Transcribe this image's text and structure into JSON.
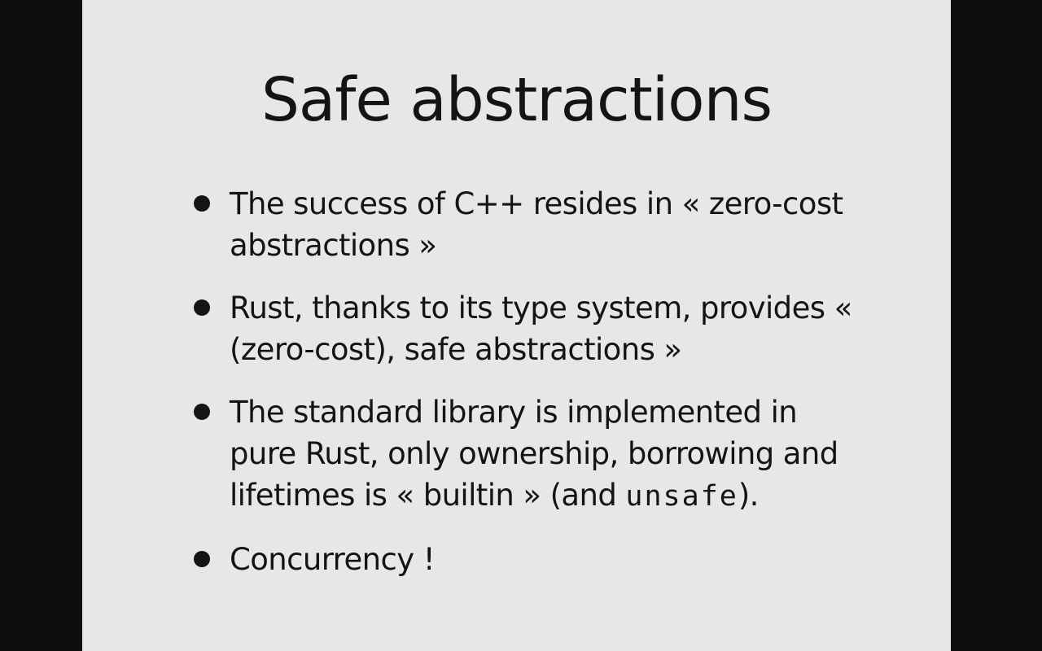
{
  "slide": {
    "title": "Safe abstractions",
    "bullets": [
      {
        "text": "The success of C++ resides in « zero-cost abstractions »"
      },
      {
        "text": "Rust, thanks to its type system, provides « (zero-cost), safe abstractions »"
      },
      {
        "text_before": "The standard library is implemented in pure Rust, only ownership, borrowing and lifetimes is « builtin » (and ",
        "code": "unsafe",
        "text_after": ")."
      },
      {
        "text": "Concurrency !"
      }
    ]
  }
}
